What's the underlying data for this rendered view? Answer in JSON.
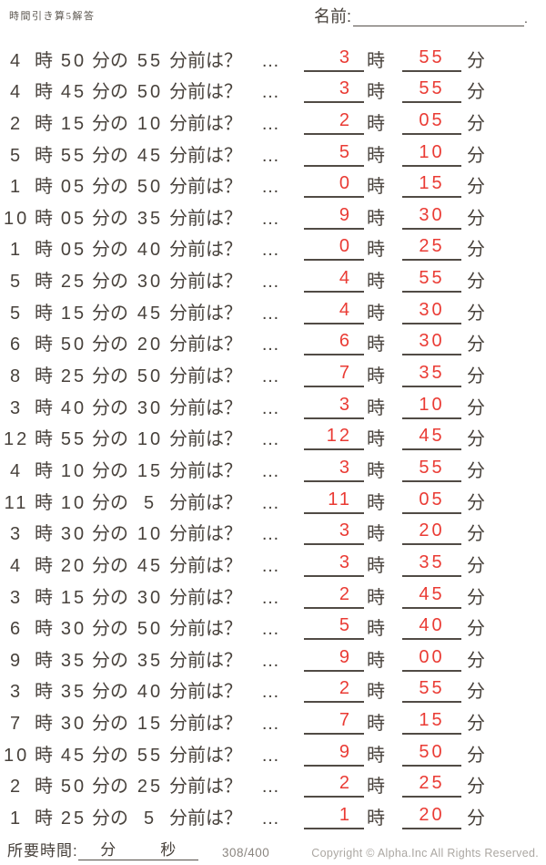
{
  "page": {
    "title": "時間引き算5解答",
    "name_label": "名前:",
    "name_dot": "."
  },
  "labels": {
    "hour": "時",
    "min_no": "分の",
    "before": "分前は？",
    "dots": "…",
    "minute": "分"
  },
  "footer": {
    "time_label": "所要時間:",
    "min_label": "分",
    "sec_label": "秒",
    "counter": "308/400",
    "copyright": "Copyright ©  Alpha.Inc All Rights Reserved."
  },
  "colors": {
    "answer_red": "#ea3b34",
    "text": "#48423c",
    "underline": "#514b45",
    "muted_gray": "#aba7a2"
  },
  "problems": [
    {
      "h": "4",
      "m": "50",
      "before": "55",
      "ans_h": "3",
      "ans_m": "55"
    },
    {
      "h": "4",
      "m": "45",
      "before": "50",
      "ans_h": "3",
      "ans_m": "55"
    },
    {
      "h": "2",
      "m": "15",
      "before": "10",
      "ans_h": "2",
      "ans_m": "05"
    },
    {
      "h": "5",
      "m": "55",
      "before": "45",
      "ans_h": "5",
      "ans_m": "10"
    },
    {
      "h": "1",
      "m": "05",
      "before": "50",
      "ans_h": "0",
      "ans_m": "15"
    },
    {
      "h": "10",
      "m": "05",
      "before": "35",
      "ans_h": "9",
      "ans_m": "30"
    },
    {
      "h": "1",
      "m": "05",
      "before": "40",
      "ans_h": "0",
      "ans_m": "25"
    },
    {
      "h": "5",
      "m": "25",
      "before": "30",
      "ans_h": "4",
      "ans_m": "55"
    },
    {
      "h": "5",
      "m": "15",
      "before": "45",
      "ans_h": "4",
      "ans_m": "30"
    },
    {
      "h": "6",
      "m": "50",
      "before": "20",
      "ans_h": "6",
      "ans_m": "30"
    },
    {
      "h": "8",
      "m": "25",
      "before": "50",
      "ans_h": "7",
      "ans_m": "35"
    },
    {
      "h": "3",
      "m": "40",
      "before": "30",
      "ans_h": "3",
      "ans_m": "10"
    },
    {
      "h": "12",
      "m": "55",
      "before": "10",
      "ans_h": "12",
      "ans_m": "45"
    },
    {
      "h": "4",
      "m": "10",
      "before": "15",
      "ans_h": "3",
      "ans_m": "55"
    },
    {
      "h": "11",
      "m": "10",
      "before": "5",
      "ans_h": "11",
      "ans_m": "05"
    },
    {
      "h": "3",
      "m": "30",
      "before": "10",
      "ans_h": "3",
      "ans_m": "20"
    },
    {
      "h": "4",
      "m": "20",
      "before": "45",
      "ans_h": "3",
      "ans_m": "35"
    },
    {
      "h": "3",
      "m": "15",
      "before": "30",
      "ans_h": "2",
      "ans_m": "45"
    },
    {
      "h": "6",
      "m": "30",
      "before": "50",
      "ans_h": "5",
      "ans_m": "40"
    },
    {
      "h": "9",
      "m": "35",
      "before": "35",
      "ans_h": "9",
      "ans_m": "00"
    },
    {
      "h": "3",
      "m": "35",
      "before": "40",
      "ans_h": "2",
      "ans_m": "55"
    },
    {
      "h": "7",
      "m": "30",
      "before": "15",
      "ans_h": "7",
      "ans_m": "15"
    },
    {
      "h": "10",
      "m": "45",
      "before": "55",
      "ans_h": "9",
      "ans_m": "50"
    },
    {
      "h": "2",
      "m": "50",
      "before": "25",
      "ans_h": "2",
      "ans_m": "25"
    },
    {
      "h": "1",
      "m": "25",
      "before": "5",
      "ans_h": "1",
      "ans_m": "20"
    }
  ]
}
